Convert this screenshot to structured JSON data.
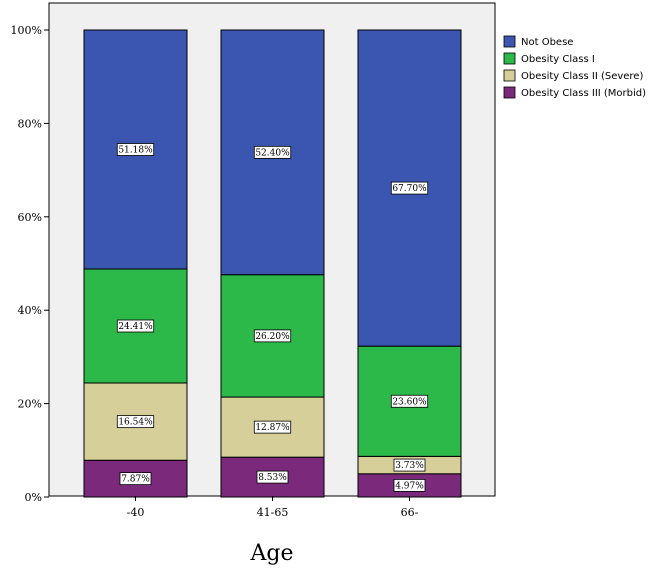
{
  "chart_data": {
    "type": "bar",
    "stacked": true,
    "percent_stacked": true,
    "xlabel": "Age",
    "ylabel": "",
    "title": "",
    "ylim": [
      0,
      100
    ],
    "yticks": [
      "0%",
      "20%",
      "40%",
      "60%",
      "80%",
      "100%"
    ],
    "categories": [
      "-40",
      "41-65",
      "66-"
    ],
    "series": [
      {
        "name": "Obesity Class III (Morbid)",
        "color": "#7b2a7b",
        "values": [
          7.87,
          8.53,
          4.97
        ],
        "labels": [
          "7.87%",
          "8.53%",
          "4.97%"
        ]
      },
      {
        "name": "Obesity Class II (Severe)",
        "color": "#d6cf9a",
        "values": [
          16.54,
          12.87,
          3.73
        ],
        "labels": [
          "16.54%",
          "12.87%",
          "3.73%"
        ]
      },
      {
        "name": "Obesity Class I",
        "color": "#2db84a",
        "values": [
          24.41,
          26.2,
          23.6
        ],
        "labels": [
          "24.41%",
          "26.20%",
          "23.60%"
        ]
      },
      {
        "name": "Not Obese",
        "color": "#3b56b0",
        "values": [
          51.18,
          52.4,
          67.7
        ],
        "labels": [
          "51.18%",
          "52.40%",
          "67.70%"
        ]
      }
    ],
    "legend_order": [
      "Not Obese",
      "Obesity Class I",
      "Obesity Class II (Severe)",
      "Obesity Class III (Morbid)"
    ],
    "legend_position": "right",
    "plot_background": "#f0f0f0",
    "grid": false
  }
}
